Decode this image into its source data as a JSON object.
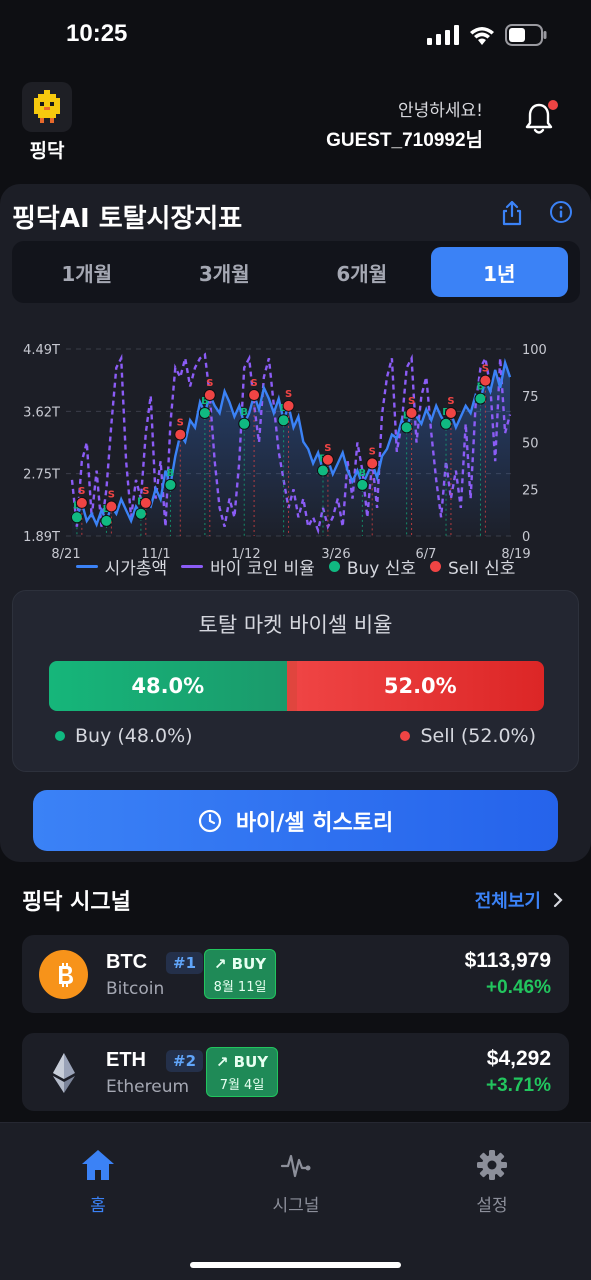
{
  "status": {
    "time": "10:25"
  },
  "header": {
    "logo_label": "핑닥",
    "greeting": "안녕하세요!",
    "username": "GUEST_710992님"
  },
  "market": {
    "title": "핑닥AI 토탈시장지표",
    "tabs": [
      {
        "label": "1개월",
        "active": false
      },
      {
        "label": "3개월",
        "active": false
      },
      {
        "label": "6개월",
        "active": false
      },
      {
        "label": "1년",
        "active": true
      }
    ],
    "legend": {
      "market_cap": "시가총액",
      "buy_coin_ratio": "바이 코인 비율",
      "buy_signal": "Buy 신호",
      "sell_signal": "Sell 신호"
    },
    "colors": {
      "market_cap": "#3b82f6",
      "buy_coin_ratio": "#8b5cf6",
      "buy": "#10b981",
      "sell": "#ef4444"
    }
  },
  "chart_data": {
    "type": "line",
    "title": "",
    "x_ticks": [
      "8/21",
      "11/1",
      "1/12",
      "3/26",
      "6/7",
      "8/19"
    ],
    "y_left_ticks": [
      "1.89T",
      "2.75T",
      "3.62T",
      "4.49T"
    ],
    "y_left_range": [
      1.89,
      4.49
    ],
    "y_right_ticks": [
      "0",
      "25",
      "50",
      "75",
      "100"
    ],
    "y_right_range": [
      0,
      100
    ],
    "series": [
      {
        "name": "시가총액",
        "axis": "left",
        "values": [
          2.2,
          2.15,
          2.35,
          2.1,
          2.2,
          2.05,
          2.25,
          2.1,
          2.3,
          2.2,
          2.4,
          2.25,
          2.1,
          2.3,
          2.2,
          2.35,
          2.3,
          2.55,
          2.4,
          2.8,
          2.6,
          3.0,
          3.3,
          3.2,
          3.5,
          3.4,
          3.75,
          3.6,
          3.85,
          3.7,
          3.6,
          3.9,
          3.75,
          3.55,
          3.7,
          3.45,
          3.6,
          3.85,
          3.65,
          3.95,
          3.8,
          3.6,
          3.8,
          3.5,
          3.7,
          3.4,
          3.55,
          3.2,
          3.1,
          2.9,
          3.05,
          2.8,
          2.95,
          2.75,
          2.9,
          3.05,
          2.8,
          2.65,
          2.8,
          2.6,
          2.75,
          2.9,
          2.7,
          3.0,
          3.1,
          3.3,
          3.25,
          3.5,
          3.4,
          3.6,
          3.55,
          3.45,
          3.65,
          3.5,
          3.7,
          3.55,
          3.45,
          3.6,
          3.4,
          3.55,
          3.7,
          3.6,
          3.85,
          3.8,
          4.05,
          3.9,
          4.2,
          3.95,
          4.3,
          4.1
        ]
      },
      {
        "name": "바이 코인 비율",
        "axis": "right",
        "values": [
          30,
          5,
          40,
          50,
          10,
          35,
          5,
          25,
          60,
          90,
          95,
          40,
          10,
          30,
          20,
          55,
          75,
          20,
          40,
          5,
          60,
          90,
          85,
          95,
          80,
          90,
          95,
          97,
          75,
          40,
          15,
          5,
          20,
          10,
          40,
          90,
          95,
          70,
          50,
          85,
          95,
          70,
          45,
          30,
          15,
          25,
          10,
          20,
          5,
          10,
          3,
          15,
          5,
          10,
          20,
          5,
          40,
          20,
          50,
          35,
          10,
          40,
          15,
          65,
          85,
          95,
          45,
          60,
          90,
          95,
          50,
          75,
          85,
          55,
          30,
          10,
          40,
          20,
          35,
          15,
          60,
          20,
          70,
          90,
          95,
          80,
          40,
          95,
          55,
          65
        ]
      }
    ],
    "buy_signal_count": 16,
    "sell_signal_count": 13
  },
  "ratio": {
    "title": "토탈 마켓 바이셀 비율",
    "buy_pct": "48.0%",
    "sell_pct": "52.0%",
    "buy_value": 48.0,
    "sell_value": 52.0,
    "buy_label": "Buy (48.0%)",
    "sell_label": "Sell (52.0%)"
  },
  "history_button": "바이/셀 히스토리",
  "signals": {
    "title": "핑닥 시그널",
    "more": "전체보기",
    "items": [
      {
        "symbol": "BTC",
        "rank": "#1",
        "name": "Bitcoin",
        "signal": "BUY",
        "date": "8월 11일",
        "price": "$113,979",
        "change": "+0.46%"
      },
      {
        "symbol": "ETH",
        "rank": "#2",
        "name": "Ethereum",
        "signal": "BUY",
        "date": "7월 4일",
        "price": "$4,292",
        "change": "+3.71%"
      }
    ]
  },
  "nav": [
    {
      "label": "홈",
      "icon": "home-icon",
      "active": true
    },
    {
      "label": "시그널",
      "icon": "pulse-icon",
      "active": false
    },
    {
      "label": "설정",
      "icon": "gear-icon",
      "active": false
    }
  ]
}
